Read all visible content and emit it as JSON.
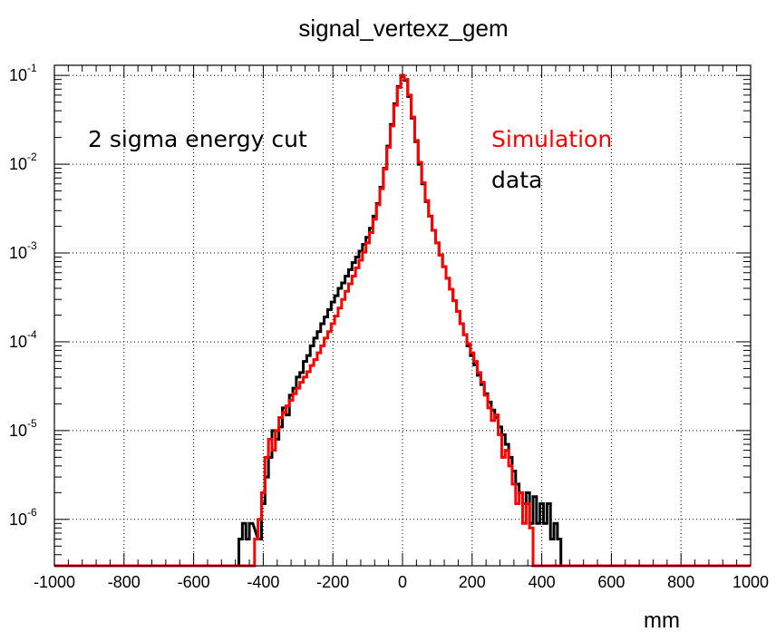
{
  "chart_data": {
    "type": "histogram",
    "title": "signal_vertexz_gem",
    "xlabel": "mm",
    "ylabel": "",
    "xlim": [
      -1000,
      1000
    ],
    "ylim": [
      3e-07,
      0.13
    ],
    "yscale": "log",
    "grid": true,
    "x_ticks": [
      -1000,
      -800,
      -600,
      -400,
      -200,
      0,
      200,
      400,
      600,
      800,
      1000
    ],
    "y_ticks": [
      {
        "value": 1e-06,
        "base": "10",
        "exp": "-6"
      },
      {
        "value": 1e-05,
        "base": "10",
        "exp": "-5"
      },
      {
        "value": 0.0001,
        "base": "10",
        "exp": "-4"
      },
      {
        "value": 0.001,
        "base": "10",
        "exp": "-3"
      },
      {
        "value": 0.01,
        "base": "10",
        "exp": "-2"
      },
      {
        "value": 0.1,
        "base": "10",
        "exp": "-1"
      }
    ],
    "annotations": [
      {
        "text": "2 sigma  energy cut",
        "color": "#000000"
      },
      {
        "text": "Simulation",
        "color": "#ff0000"
      },
      {
        "text": "data",
        "color": "#000000"
      }
    ],
    "series": [
      {
        "color": "#000000",
        "points": [
          [
            -465,
            6e-07
          ],
          [
            -455,
            9e-07
          ],
          [
            -445,
            6e-07
          ],
          [
            -435,
            9e-07
          ],
          [
            -410,
            6e-07
          ],
          [
            -400,
            1.5e-06
          ],
          [
            -390,
            3e-06
          ],
          [
            -380,
            5e-06
          ],
          [
            -370,
            1e-05
          ],
          [
            -360,
            8e-06
          ],
          [
            -350,
            1.1e-05
          ],
          [
            -340,
            1.8e-05
          ],
          [
            -330,
            1.5e-05
          ],
          [
            -320,
            2.5e-05
          ],
          [
            -310,
            3e-05
          ],
          [
            -300,
            4e-05
          ],
          [
            -290,
            4.5e-05
          ],
          [
            -280,
            6e-05
          ],
          [
            -270,
            7e-05
          ],
          [
            -260,
            9e-05
          ],
          [
            -250,
            0.00011
          ],
          [
            -240,
            0.00013
          ],
          [
            -230,
            0.00016
          ],
          [
            -220,
            0.00019
          ],
          [
            -210,
            0.00023
          ],
          [
            -200,
            0.00028
          ],
          [
            -190,
            0.00033
          ],
          [
            -180,
            0.0004
          ],
          [
            -170,
            0.00046
          ],
          [
            -160,
            0.00055
          ],
          [
            -150,
            0.00065
          ],
          [
            -140,
            0.00078
          ],
          [
            -130,
            0.0009
          ],
          [
            -120,
            0.00105
          ],
          [
            -110,
            0.00125
          ],
          [
            -100,
            0.0015
          ],
          [
            -90,
            0.0019
          ],
          [
            -80,
            0.0026
          ],
          [
            -70,
            0.0036
          ],
          [
            -60,
            0.0055
          ],
          [
            -50,
            0.009
          ],
          [
            -40,
            0.016
          ],
          [
            -30,
            0.028
          ],
          [
            -20,
            0.048
          ],
          [
            -10,
            0.075
          ],
          [
            0,
            0.098
          ],
          [
            10,
            0.088
          ],
          [
            20,
            0.058
          ],
          [
            30,
            0.033
          ],
          [
            40,
            0.018
          ],
          [
            50,
            0.01
          ],
          [
            60,
            0.006
          ],
          [
            70,
            0.0038
          ],
          [
            80,
            0.0026
          ],
          [
            90,
            0.0018
          ],
          [
            100,
            0.0013
          ],
          [
            110,
            0.00095
          ],
          [
            120,
            0.0007
          ],
          [
            130,
            0.00052
          ],
          [
            140,
            0.00039
          ],
          [
            150,
            0.00029
          ],
          [
            160,
            0.00022
          ],
          [
            170,
            0.00016
          ],
          [
            180,
            0.00012
          ],
          [
            190,
            9e-05
          ],
          [
            200,
            7e-05
          ],
          [
            210,
            5.5e-05
          ],
          [
            220,
            4.2e-05
          ],
          [
            230,
            3.3e-05
          ],
          [
            240,
            2.6e-05
          ],
          [
            250,
            2.1e-05
          ],
          [
            260,
            1.7e-05
          ],
          [
            270,
            1.4e-05
          ],
          [
            280,
            1.1e-05
          ],
          [
            290,
            9e-06
          ],
          [
            300,
            7e-06
          ],
          [
            310,
            5e-06
          ],
          [
            320,
            3.5e-06
          ],
          [
            330,
            2.5e-06
          ],
          [
            340,
            2e-06
          ],
          [
            350,
            1.5e-06
          ],
          [
            360,
            2e-06
          ],
          [
            370,
            9e-07
          ],
          [
            380,
            1.8e-06
          ],
          [
            390,
            9e-07
          ],
          [
            400,
            1.5e-06
          ],
          [
            410,
            9e-07
          ],
          [
            420,
            1.5e-06
          ],
          [
            430,
            6e-07
          ],
          [
            440,
            9e-07
          ],
          [
            450,
            6e-07
          ]
        ]
      },
      {
        "name": "Simulation",
        "color": "#ff0000",
        "points": [
          [
            -420,
            6e-07
          ],
          [
            -410,
            1e-06
          ],
          [
            -400,
            2e-06
          ],
          [
            -390,
            5e-06
          ],
          [
            -380,
            8e-06
          ],
          [
            -370,
            6e-06
          ],
          [
            -360,
            1e-05
          ],
          [
            -350,
            1.4e-05
          ],
          [
            -340,
            1.6e-05
          ],
          [
            -330,
            1.9e-05
          ],
          [
            -320,
            2.2e-05
          ],
          [
            -310,
            2.6e-05
          ],
          [
            -300,
            3e-05
          ],
          [
            -290,
            3.5e-05
          ],
          [
            -280,
            4e-05
          ],
          [
            -270,
            4.6e-05
          ],
          [
            -260,
            5.4e-05
          ],
          [
            -250,
            6.3e-05
          ],
          [
            -240,
            7.5e-05
          ],
          [
            -230,
            9e-05
          ],
          [
            -220,
            0.00011
          ],
          [
            -210,
            0.00013
          ],
          [
            -200,
            0.00016
          ],
          [
            -190,
            0.000195
          ],
          [
            -180,
            0.00024
          ],
          [
            -170,
            0.0003
          ],
          [
            -160,
            0.00037
          ],
          [
            -150,
            0.00045
          ],
          [
            -140,
            0.00055
          ],
          [
            -130,
            0.00068
          ],
          [
            -120,
            0.00083
          ],
          [
            -110,
            0.00102
          ],
          [
            -100,
            0.0013
          ],
          [
            -90,
            0.0017
          ],
          [
            -80,
            0.0024
          ],
          [
            -70,
            0.0035
          ],
          [
            -60,
            0.0053
          ],
          [
            -50,
            0.0088
          ],
          [
            -40,
            0.0155
          ],
          [
            -30,
            0.027
          ],
          [
            -20,
            0.046
          ],
          [
            -10,
            0.073
          ],
          [
            0,
            0.1
          ],
          [
            10,
            0.09
          ],
          [
            20,
            0.06
          ],
          [
            30,
            0.034
          ],
          [
            40,
            0.0185
          ],
          [
            50,
            0.0105
          ],
          [
            60,
            0.0062
          ],
          [
            70,
            0.0039
          ],
          [
            80,
            0.0026
          ],
          [
            90,
            0.0018
          ],
          [
            100,
            0.0013
          ],
          [
            110,
            0.00095
          ],
          [
            120,
            0.0007
          ],
          [
            130,
            0.00052
          ],
          [
            140,
            0.00039
          ],
          [
            150,
            0.00029
          ],
          [
            160,
            0.00022
          ],
          [
            170,
            0.00016
          ],
          [
            180,
            0.00012
          ],
          [
            190,
            9.5e-05
          ],
          [
            200,
            7.5e-05
          ],
          [
            210,
            6e-05
          ],
          [
            220,
            4.5e-05
          ],
          [
            230,
            3.5e-05
          ],
          [
            240,
            2.5e-05
          ],
          [
            250,
            1.8e-05
          ],
          [
            260,
            1.3e-05
          ],
          [
            270,
            1.5e-05
          ],
          [
            280,
            9e-06
          ],
          [
            290,
            5e-06
          ],
          [
            300,
            6e-06
          ],
          [
            310,
            4e-06
          ],
          [
            320,
            2.5e-06
          ],
          [
            330,
            1.5e-06
          ],
          [
            340,
            2e-06
          ],
          [
            350,
            9e-07
          ],
          [
            360,
            1.5e-06
          ],
          [
            370,
            8e-07
          ]
        ]
      }
    ]
  }
}
